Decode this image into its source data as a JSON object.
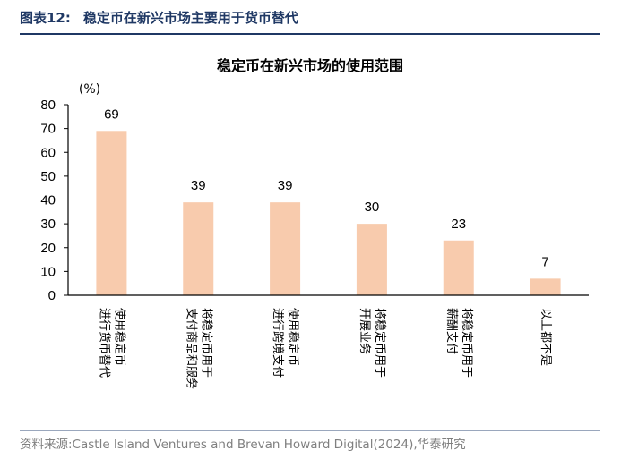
{
  "figure": {
    "label": "图表12:",
    "caption": "稳定币在新兴市场主要用于货币替代"
  },
  "chart_data": {
    "type": "bar",
    "title": "稳定币在新兴市场的使用范围",
    "ylabel": "(%)",
    "xlabel": "",
    "ylim": [
      0,
      80
    ],
    "yticks": [
      0,
      10,
      20,
      30,
      40,
      50,
      60,
      70,
      80
    ],
    "categories": [
      [
        "使用稳定币",
        "进行货币替代"
      ],
      [
        "将稳定币用于",
        "支付商品和服务"
      ],
      [
        "使用稳定币",
        "进行跨境支付"
      ],
      [
        "将稳定币用于",
        "开展业务"
      ],
      [
        "将稳定币用于",
        "薪酬支付"
      ],
      [
        "以上都不是"
      ]
    ],
    "values": [
      69,
      39,
      39,
      30,
      23,
      7
    ],
    "grid": false,
    "legend": "none",
    "bar_color": "#f8cbad",
    "axis_color": "#000000"
  },
  "source": "资料来源:Castle Island Ventures and Brevan Howard Digital(2024),华泰研究"
}
